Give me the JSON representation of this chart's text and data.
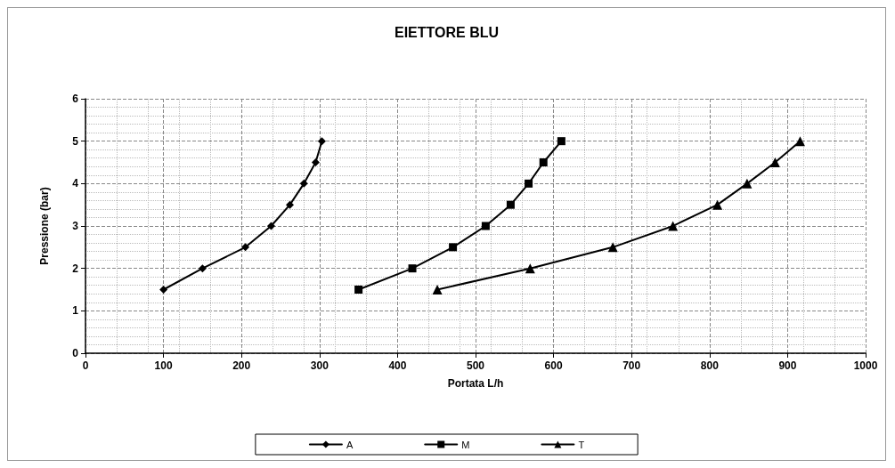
{
  "chart_data": {
    "type": "line",
    "title": "EIETTORE BLU",
    "xlabel": "Portata L/h",
    "ylabel": "Pressione (bar)",
    "xlim": [
      0,
      1000
    ],
    "xticks": [
      0,
      100,
      200,
      300,
      400,
      500,
      600,
      700,
      800,
      900,
      1000
    ],
    "ylim": [
      0,
      6
    ],
    "yticks": [
      0,
      1,
      2,
      3,
      4,
      5,
      6
    ],
    "grid": true,
    "legend": "bottom",
    "line_style": "solid",
    "series": [
      {
        "name": "A",
        "color": "#000000",
        "marker": "diamond",
        "x": [
          100,
          150,
          205,
          238,
          262,
          280,
          295,
          303
        ],
        "values": [
          1.5,
          2,
          2.5,
          3,
          3.5,
          4,
          4.5,
          5
        ]
      },
      {
        "name": "M",
        "color": "#000000",
        "marker": "square",
        "x": [
          350,
          419,
          471,
          513,
          545,
          568,
          587,
          610
        ],
        "values": [
          1.5,
          2,
          2.5,
          3,
          3.5,
          4,
          4.5,
          5
        ]
      },
      {
        "name": "T",
        "color": "#000000",
        "marker": "triangle",
        "x": [
          451,
          570,
          676,
          753,
          810,
          848,
          884,
          916
        ],
        "values": [
          1.5,
          2,
          2.5,
          3,
          3.5,
          4,
          4.5,
          5
        ]
      }
    ]
  }
}
